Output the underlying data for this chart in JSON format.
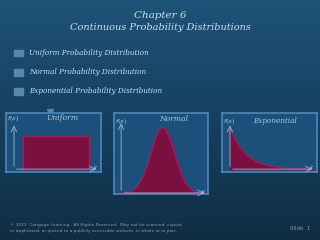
{
  "title_line1": "Chapter 6",
  "title_line2": "Continuous Probability Distributions",
  "bullets": [
    "Uniform Probability Distribution",
    "Normal Probability Distribution",
    "Exponential Probability Distribution"
  ],
  "bg_color_top": "#1e5278",
  "bg_color_bottom": "#0e2d44",
  "title_color": "#c8dff0",
  "bullet_color": "#c8dff0",
  "bullet_marker_color": "#5588aa",
  "box_bg": "#1c4f7a",
  "box_edge": "#4a88bb",
  "curve_fill": "#7a1040",
  "curve_line": "#b01858",
  "axis_color": "#88aac8",
  "label_color": "#aaccdd",
  "copyright_text": "© 2012  Cengage Learning.  All Rights Reserved.  May not be scanned, copied\nor duplicated, or posted to a publicly accessible website, in whole or in part.",
  "slide_text": "Slide  1",
  "footer_color": "#8899aa",
  "arrow_color": "#4a88bb"
}
